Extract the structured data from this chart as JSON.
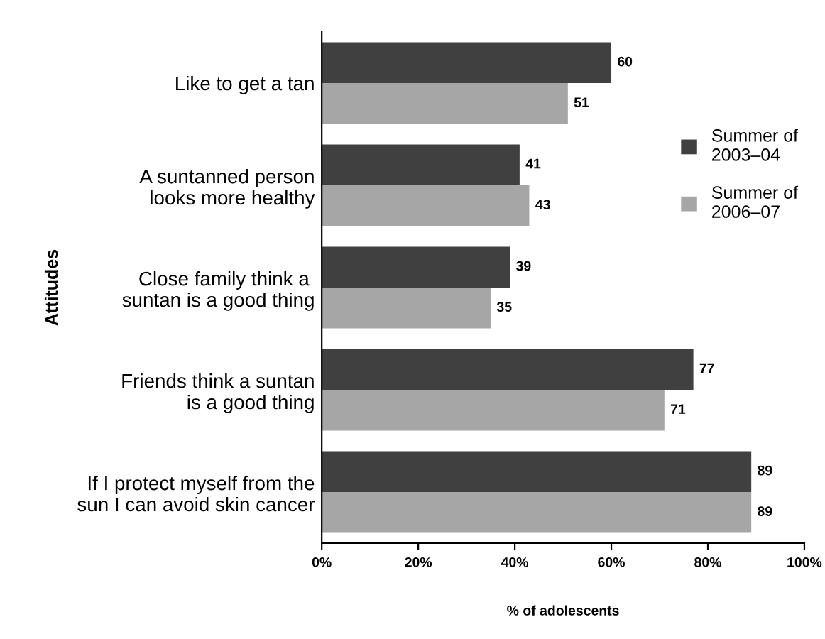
{
  "chart_data": {
    "type": "bar",
    "orientation": "horizontal",
    "xlabel": "% of adolescents",
    "ylabel": "Attitudes",
    "categories": [
      "Like to get a tan",
      "A suntanned person\nlooks more healthy",
      "Close family think a \nsuntan is a good thing",
      "Friends think a suntan\nis a good thing",
      "If I protect myself from the\nsun I can avoid skin cancer"
    ],
    "series": [
      {
        "name": "Summer of\n2003–04",
        "color": "#404040",
        "values": [
          60,
          41,
          39,
          77,
          89
        ]
      },
      {
        "name": "Summer of\n2006–07",
        "color": "#a6a6a6",
        "values": [
          51,
          43,
          35,
          71,
          89
        ]
      }
    ],
    "xlim": [
      0,
      100
    ],
    "xticks": [
      {
        "value": 0,
        "label": "0%"
      },
      {
        "value": 20,
        "label": "20%"
      },
      {
        "value": 40,
        "label": "40%"
      },
      {
        "value": 60,
        "label": "60%"
      },
      {
        "value": 80,
        "label": "80%"
      },
      {
        "value": 100,
        "label": "100%"
      }
    ],
    "data_labels": true,
    "legend": "right",
    "grid": false
  }
}
